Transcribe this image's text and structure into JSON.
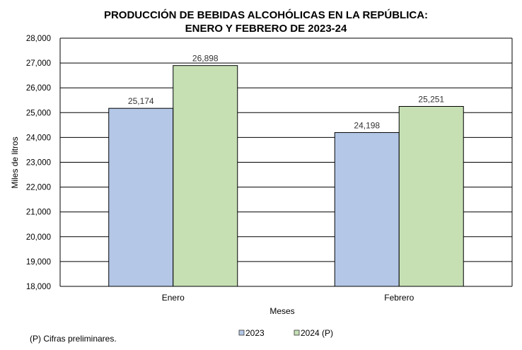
{
  "chart_data": {
    "type": "bar",
    "title": [
      "PRODUCCIÓN DE BEBIDAS ALCOHÓLICAS EN LA REPÚBLICA:",
      "ENERO Y FEBRERO DE 2023-24"
    ],
    "xlabel": "Meses",
    "ylabel": "Miles de litros",
    "categories": [
      "Enero",
      "Febrero"
    ],
    "series": [
      {
        "name": "2023",
        "values": [
          25174,
          24198
        ],
        "labels": [
          "25,174",
          "24,198"
        ],
        "color": "#B4C7E7"
      },
      {
        "name": "2024 (P)",
        "values": [
          26898,
          25251
        ],
        "labels": [
          "26,898",
          "25,251"
        ],
        "color": "#C6E0B4"
      }
    ],
    "ylim": [
      18000,
      28000
    ],
    "yticks": [
      18000,
      19000,
      20000,
      21000,
      22000,
      23000,
      24000,
      25000,
      26000,
      27000,
      28000
    ],
    "ytick_labels": [
      "18,000",
      "19,000",
      "20,000",
      "21,000",
      "22,000",
      "23,000",
      "24,000",
      "25,000",
      "26,000",
      "27,000",
      "28,000"
    ],
    "grid": true,
    "legend_position": "bottom",
    "footnote": "(P) Cifras  preliminares."
  }
}
